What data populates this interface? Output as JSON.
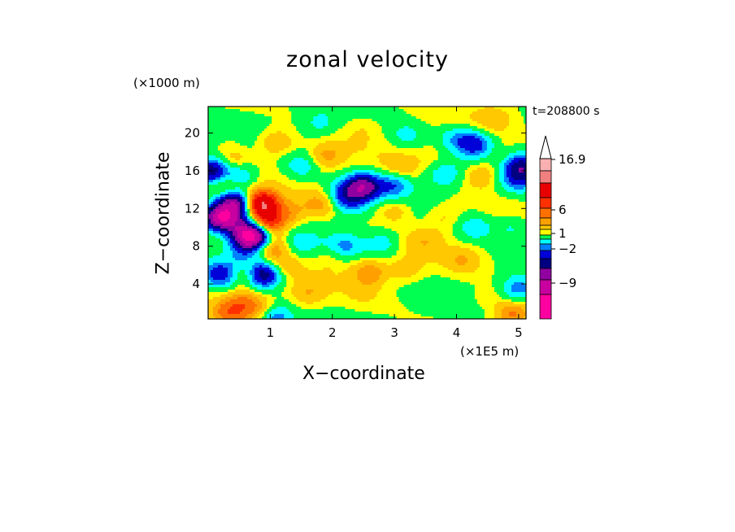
{
  "chart_data": {
    "type": "heatmap",
    "title": "zonal velocity",
    "xlabel": "X−coordinate",
    "ylabel": "Z−coordinate",
    "x_unit": "(×1E5 m)",
    "y_unit": "(×1000 m)",
    "annotation": "t=208800 s",
    "xlim": [
      0,
      5.12
    ],
    "ylim": [
      0.3,
      22.8
    ],
    "x_ticks": [
      "1",
      "2",
      "3",
      "4",
      "5"
    ],
    "y_ticks": [
      "4",
      "8",
      "12",
      "16",
      "20"
    ],
    "colorbar": {
      "labels": [
        "16.9",
        "6",
        "1",
        "−2",
        "−9"
      ],
      "colors": [
        "#ff00a0",
        "#c800a0",
        "#9000a0",
        "#000080",
        "#0000d8",
        "#0080ff",
        "#00ffff",
        "#00ff50",
        "#ffff00",
        "#ffc800",
        "#ffa000",
        "#ff7000",
        "#ff3000",
        "#e80000",
        "#f08080",
        "#f8b0b0"
      ],
      "extend_top": true
    },
    "blobs": [
      {
        "x": 0.6,
        "z": 2,
        "v": 2.5
      },
      {
        "x": 0.35,
        "z": 1,
        "v": 3
      },
      {
        "x": 0.95,
        "z": 1,
        "v": 3
      },
      {
        "x": 0.68,
        "z": 5,
        "v": 4
      },
      {
        "x": 0.85,
        "z": 12.5,
        "v": 9
      },
      {
        "x": 0.95,
        "z": 10.5,
        "v": 6
      },
      {
        "x": 1.0,
        "z": 8,
        "v": 3
      },
      {
        "x": 0.55,
        "z": 10,
        "v": -3
      },
      {
        "x": 0.2,
        "z": 11,
        "v": -10
      },
      {
        "x": 0.45,
        "z": 12.5,
        "v": -8
      },
      {
        "x": 0.7,
        "z": 9,
        "v": -12
      },
      {
        "x": 0.85,
        "z": 5,
        "v": -8
      },
      {
        "x": 0.55,
        "z": 7,
        "v": -2
      },
      {
        "x": 0.2,
        "z": 5,
        "v": -4
      },
      {
        "x": 0.3,
        "z": 14.5,
        "v": 2
      },
      {
        "x": 0.5,
        "z": 15.5,
        "v": -3
      },
      {
        "x": 0.05,
        "z": 16,
        "v": -6
      },
      {
        "x": 0.4,
        "z": 17,
        "v": 1.5
      },
      {
        "x": 0.4,
        "z": 20,
        "v": 0.5
      },
      {
        "x": 1.1,
        "z": 19,
        "v": 2
      },
      {
        "x": 1.05,
        "z": 0.6,
        "v": -5
      },
      {
        "x": 1.6,
        "z": 3,
        "v": 1.5
      },
      {
        "x": 2.5,
        "z": 3,
        "v": 0.6
      },
      {
        "x": 3.2,
        "z": 5.5,
        "v": 1.2
      },
      {
        "x": 2.6,
        "z": 5.2,
        "v": 2.5
      },
      {
        "x": 2.0,
        "z": 6.8,
        "v": 0.8
      },
      {
        "x": 2.2,
        "z": 8,
        "v": -2.5
      },
      {
        "x": 2.8,
        "z": 8.3,
        "v": -2
      },
      {
        "x": 1.5,
        "z": 8.2,
        "v": -1.5
      },
      {
        "x": 3.5,
        "z": 8.6,
        "v": 1.2
      },
      {
        "x": 4.1,
        "z": 6.5,
        "v": 1.5
      },
      {
        "x": 4.5,
        "z": 2.5,
        "v": 0.8
      },
      {
        "x": 4.9,
        "z": 0.8,
        "v": 3
      },
      {
        "x": 5.0,
        "z": 3.5,
        "v": -3
      },
      {
        "x": 4.3,
        "z": 10,
        "v": -2
      },
      {
        "x": 4.9,
        "z": 10,
        "v": -1.5
      },
      {
        "x": 3.8,
        "z": 11,
        "v": 1
      },
      {
        "x": 3.0,
        "z": 11.8,
        "v": 1.5
      },
      {
        "x": 2.3,
        "z": 12.5,
        "v": -2
      },
      {
        "x": 2.5,
        "z": 14.3,
        "v": -7
      },
      {
        "x": 2.2,
        "z": 13.6,
        "v": -3
      },
      {
        "x": 3.0,
        "z": 14.5,
        "v": -3
      },
      {
        "x": 3.1,
        "z": 16.3,
        "v": 1.5
      },
      {
        "x": 3.6,
        "z": 17.7,
        "v": 0.6
      },
      {
        "x": 3.8,
        "z": 15.5,
        "v": -2
      },
      {
        "x": 4.4,
        "z": 15.5,
        "v": 2
      },
      {
        "x": 5.0,
        "z": 15,
        "v": -3
      },
      {
        "x": 5.05,
        "z": 16.5,
        "v": -5
      },
      {
        "x": 4.7,
        "z": 17.5,
        "v": 0.6
      },
      {
        "x": 4.3,
        "z": 18.8,
        "v": -4
      },
      {
        "x": 4.0,
        "z": 19.5,
        "v": -2
      },
      {
        "x": 3.2,
        "z": 19.8,
        "v": -1.5
      },
      {
        "x": 1.5,
        "z": 16.5,
        "v": -2
      },
      {
        "x": 1.9,
        "z": 17.5,
        "v": 2
      },
      {
        "x": 2.5,
        "z": 20.5,
        "v": 0.6
      },
      {
        "x": 1.3,
        "z": 11.5,
        "v": 2
      },
      {
        "x": 1.8,
        "z": 12.5,
        "v": 2
      },
      {
        "x": 1.2,
        "z": 6,
        "v": 1.5
      },
      {
        "x": 4.6,
        "z": 21.5,
        "v": 1.2
      },
      {
        "x": 1.8,
        "z": 21,
        "v": -1.5
      }
    ]
  }
}
